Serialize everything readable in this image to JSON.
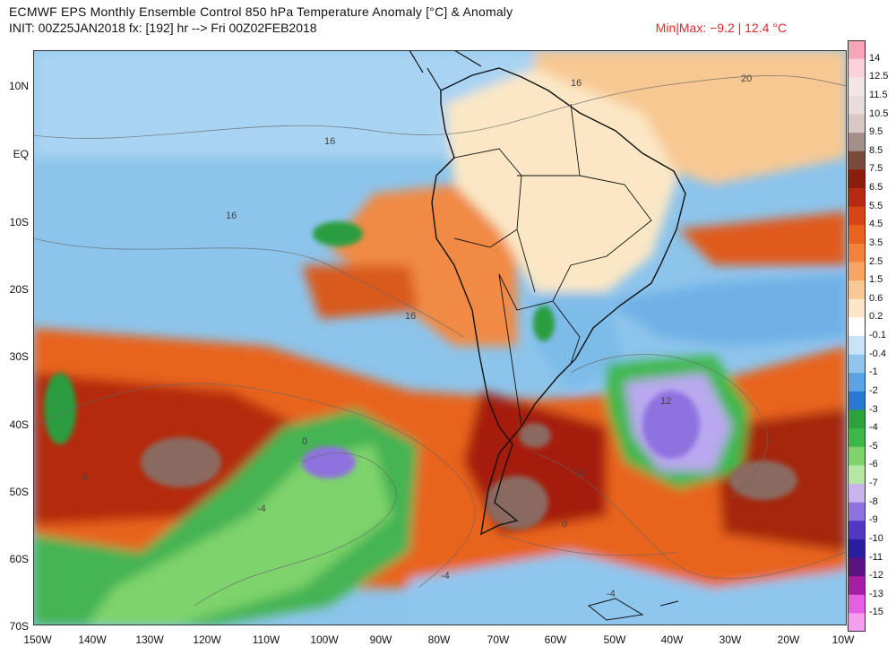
{
  "header": {
    "title": "ECMWF EPS Monthly Ensemble Control 850 hPa Temperature Anomaly [°C] & Anomaly",
    "init": "INIT: 00Z25JAN2018 fx: [192] hr --> Fri 00Z02FEB2018",
    "minmax": "Min|Max: −9.2 | 12.4 °C"
  },
  "lat_labels": [
    "10N",
    "EQ",
    "10S",
    "20S",
    "30S",
    "40S",
    "50S",
    "60S",
    "70S"
  ],
  "lon_labels": [
    "150W",
    "140W",
    "130W",
    "120W",
    "110W",
    "100W",
    "90W",
    "80W",
    "70W",
    "60W",
    "50W",
    "40W",
    "30W",
    "20W",
    "10W"
  ],
  "contour_labels": [
    "16",
    "20",
    "16",
    "16",
    "16",
    "16",
    "16",
    "12",
    "8",
    "8",
    "8",
    "0",
    "0",
    "-4",
    "-4",
    "-4",
    "12",
    "0",
    "-4",
    "-4"
  ],
  "colorbar": {
    "levels": [
      "14",
      "12.5",
      "11.5",
      "10.5",
      "9.5",
      "8.5",
      "7.5",
      "6.5",
      "5.5",
      "4.5",
      "3.5",
      "2.5",
      "1.5",
      "0.6",
      "0.2",
      "-0.1",
      "-0.4",
      "-1",
      "-2",
      "-3",
      "-4",
      "-5",
      "-6",
      "-7",
      "-8",
      "-9",
      "-10",
      "-11",
      "-12",
      "-13",
      "-15"
    ],
    "colors": [
      "#f7a6b8",
      "#fbd1da",
      "#f3e6e6",
      "#e8dcdc",
      "#d9c9c6",
      "#a58f8a",
      "#7a4a3c",
      "#8c1d0c",
      "#b52a10",
      "#d64516",
      "#e8631f",
      "#f1843a",
      "#f6a565",
      "#fac894",
      "#fde6c8",
      "#ffffff",
      "#c9e4f6",
      "#90c6ee",
      "#5ba3e2",
      "#2a78d2",
      "#2da13c",
      "#3cb84a",
      "#7ed36c",
      "#b5e6a2",
      "#c9b4ee",
      "#8e72df",
      "#5338c4",
      "#2a1ea0",
      "#5a1280",
      "#a51ea4",
      "#e55fe0",
      "#f59ef0"
    ]
  }
}
